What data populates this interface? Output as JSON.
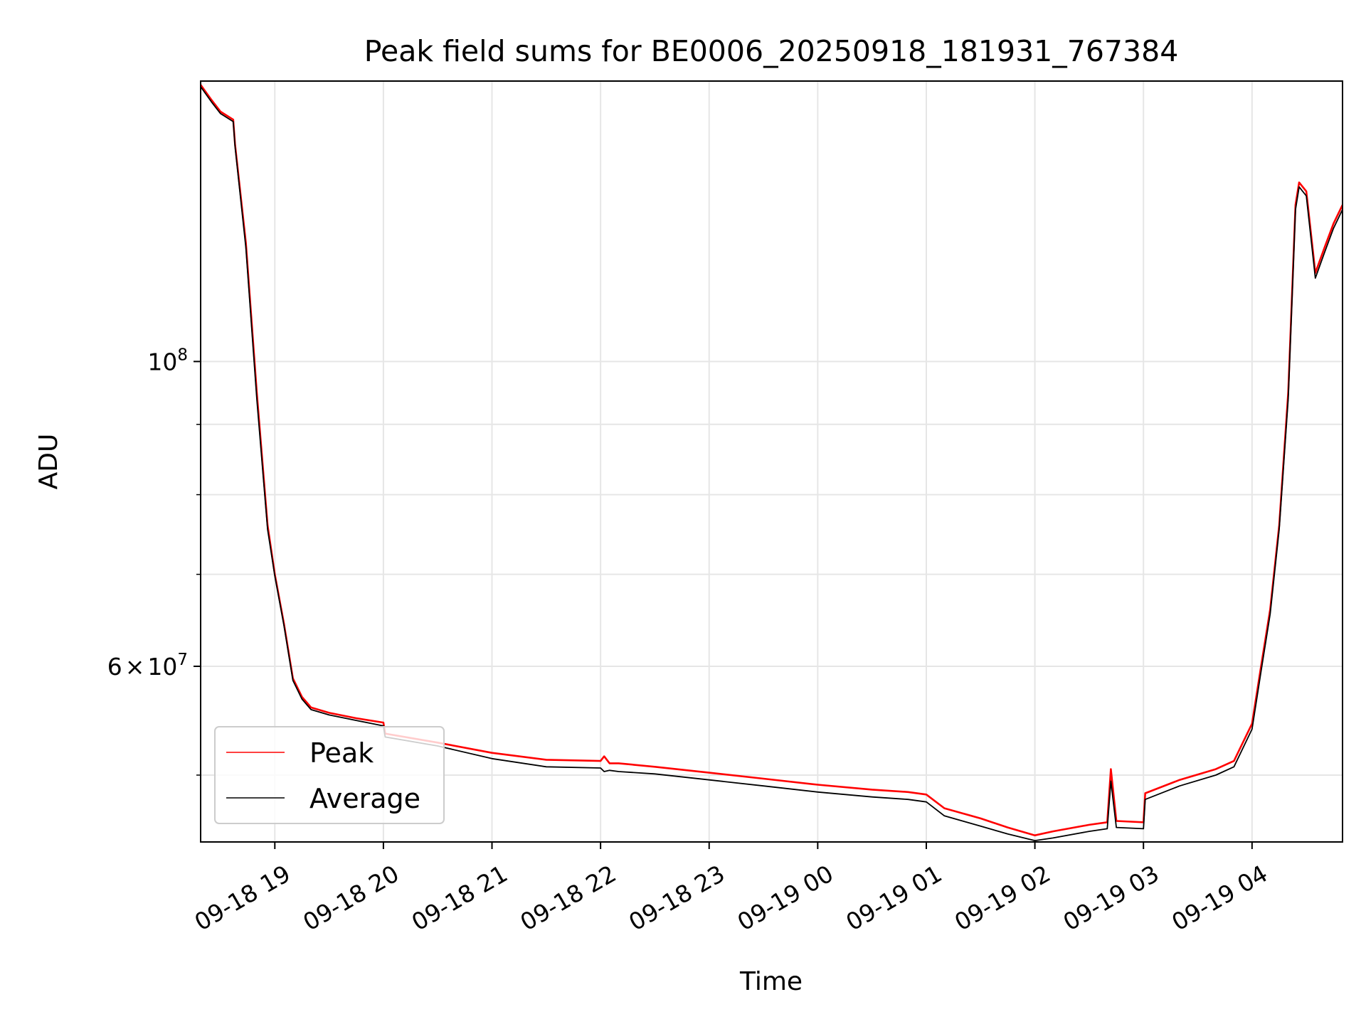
{
  "chart_data": {
    "type": "line",
    "title": "Peak field sums for BE0006_20250918_181931_767384",
    "xlabel": "Time",
    "ylabel": "ADU",
    "y_scale": "log",
    "grid": true,
    "legend_position": "lower-left",
    "xlim": [
      "2025-09-18 18:19",
      "2025-09-19 04:50"
    ],
    "ylim": [
      44700000,
      160000000
    ],
    "x_ticks": [
      "09-18 19",
      "09-18 20",
      "09-18 21",
      "09-18 22",
      "09-18 23",
      "09-19 00",
      "09-19 01",
      "09-19 02",
      "09-19 03",
      "09-19 04"
    ],
    "x_tick_times": [
      "2025-09-18 19:00",
      "2025-09-18 20:00",
      "2025-09-18 21:00",
      "2025-09-18 22:00",
      "2025-09-18 23:00",
      "2025-09-19 00:00",
      "2025-09-19 01:00",
      "2025-09-19 02:00",
      "2025-09-19 03:00",
      "2025-09-19 04:00"
    ],
    "y_major_ticks": [
      {
        "value": 100000000,
        "mantissa": "",
        "exponent": "8"
      },
      {
        "value": 60000000,
        "mantissa": "6",
        "exponent": "7"
      }
    ],
    "y_minor_ticks": [
      50000000,
      70000000,
      80000000,
      90000000,
      200000000
    ],
    "series": [
      {
        "name": "Peak",
        "color": "#ff0000",
        "x": [
          "2025-09-18 18:19",
          "2025-09-18 18:25",
          "2025-09-18 18:30",
          "2025-09-18 18:37",
          "2025-09-18 18:38",
          "2025-09-18 18:44",
          "2025-09-18 18:50",
          "2025-09-18 18:56",
          "2025-09-18 19:00",
          "2025-09-18 19:05",
          "2025-09-18 19:10",
          "2025-09-18 19:15",
          "2025-09-18 19:20",
          "2025-09-18 19:30",
          "2025-09-18 19:45",
          "2025-09-18 20:00",
          "2025-09-18 20:01",
          "2025-09-18 20:30",
          "2025-09-18 21:00",
          "2025-09-18 21:30",
          "2025-09-18 22:00",
          "2025-09-18 22:02",
          "2025-09-18 22:05",
          "2025-09-18 22:10",
          "2025-09-18 22:30",
          "2025-09-18 23:00",
          "2025-09-18 23:30",
          "2025-09-19 00:00",
          "2025-09-19 00:30",
          "2025-09-19 00:50",
          "2025-09-19 01:00",
          "2025-09-19 01:10",
          "2025-09-19 01:20",
          "2025-09-19 01:30",
          "2025-09-19 01:45",
          "2025-09-19 02:00",
          "2025-09-19 02:10",
          "2025-09-19 02:30",
          "2025-09-19 02:40",
          "2025-09-19 02:42",
          "2025-09-19 02:45",
          "2025-09-19 03:00",
          "2025-09-19 03:01",
          "2025-09-19 03:20",
          "2025-09-19 03:40",
          "2025-09-19 03:50",
          "2025-09-19 04:00",
          "2025-09-19 04:05",
          "2025-09-19 04:10",
          "2025-09-19 04:15",
          "2025-09-19 04:20",
          "2025-09-19 04:24",
          "2025-09-19 04:26",
          "2025-09-19 04:30",
          "2025-09-19 04:35",
          "2025-09-19 04:40",
          "2025-09-19 04:45",
          "2025-09-19 04:50"
        ],
        "y": [
          159000000,
          155000000,
          152000000,
          150000000,
          144000000,
          122000000,
          95000000,
          76000000,
          70000000,
          64500000,
          58800000,
          57000000,
          56000000,
          55500000,
          55000000,
          54600000,
          53600000,
          52800000,
          51900000,
          51300000,
          51200000,
          51600000,
          51000000,
          51000000,
          50700000,
          50200000,
          49700000,
          49200000,
          48800000,
          48600000,
          48400000,
          47300000,
          46900000,
          46500000,
          45800000,
          45200000,
          45500000,
          46000000,
          46200000,
          50500000,
          46300000,
          46200000,
          48500000,
          49600000,
          50500000,
          51200000,
          54500000,
          60000000,
          66000000,
          76000000,
          95000000,
          130000000,
          135000000,
          133000000,
          116000000,
          121000000,
          126000000,
          130000000
        ]
      },
      {
        "name": "Average",
        "color": "#000000",
        "x": [
          "2025-09-18 18:19",
          "2025-09-18 18:25",
          "2025-09-18 18:30",
          "2025-09-18 18:37",
          "2025-09-18 18:38",
          "2025-09-18 18:44",
          "2025-09-18 18:50",
          "2025-09-18 18:56",
          "2025-09-18 19:00",
          "2025-09-18 19:05",
          "2025-09-18 19:10",
          "2025-09-18 19:15",
          "2025-09-18 19:20",
          "2025-09-18 19:30",
          "2025-09-18 19:45",
          "2025-09-18 20:00",
          "2025-09-18 20:01",
          "2025-09-18 20:30",
          "2025-09-18 21:00",
          "2025-09-18 21:30",
          "2025-09-18 22:00",
          "2025-09-18 22:02",
          "2025-09-18 22:05",
          "2025-09-18 22:10",
          "2025-09-18 22:30",
          "2025-09-18 23:00",
          "2025-09-18 23:30",
          "2025-09-19 00:00",
          "2025-09-19 00:30",
          "2025-09-19 00:50",
          "2025-09-19 01:00",
          "2025-09-19 01:10",
          "2025-09-19 01:20",
          "2025-09-19 01:30",
          "2025-09-19 01:45",
          "2025-09-19 02:00",
          "2025-09-19 02:10",
          "2025-09-19 02:30",
          "2025-09-19 02:40",
          "2025-09-19 02:42",
          "2025-09-19 02:45",
          "2025-09-19 03:00",
          "2025-09-19 03:01",
          "2025-09-19 03:20",
          "2025-09-19 03:40",
          "2025-09-19 03:50",
          "2025-09-19 04:00",
          "2025-09-19 04:05",
          "2025-09-19 04:10",
          "2025-09-19 04:15",
          "2025-09-19 04:20",
          "2025-09-19 04:24",
          "2025-09-19 04:26",
          "2025-09-19 04:30",
          "2025-09-19 04:35",
          "2025-09-19 04:40",
          "2025-09-19 04:45",
          "2025-09-19 04:50"
        ],
        "y": [
          158500000,
          154500000,
          151500000,
          149500000,
          143500000,
          121000000,
          94000000,
          75500000,
          69800000,
          64300000,
          58600000,
          56800000,
          55800000,
          55300000,
          54800000,
          54300000,
          53300000,
          52500000,
          51400000,
          50700000,
          50600000,
          50300000,
          50400000,
          50300000,
          50100000,
          49600000,
          49100000,
          48600000,
          48200000,
          48000000,
          47800000,
          46700000,
          46300000,
          45900000,
          45300000,
          44800000,
          45000000,
          45500000,
          45700000,
          49500000,
          45800000,
          45700000,
          48000000,
          49100000,
          50000000,
          50700000,
          54000000,
          59500000,
          65500000,
          75500000,
          94000000,
          129000000,
          134000000,
          132000000,
          115000000,
          120000000,
          125000000,
          129000000
        ]
      }
    ]
  }
}
